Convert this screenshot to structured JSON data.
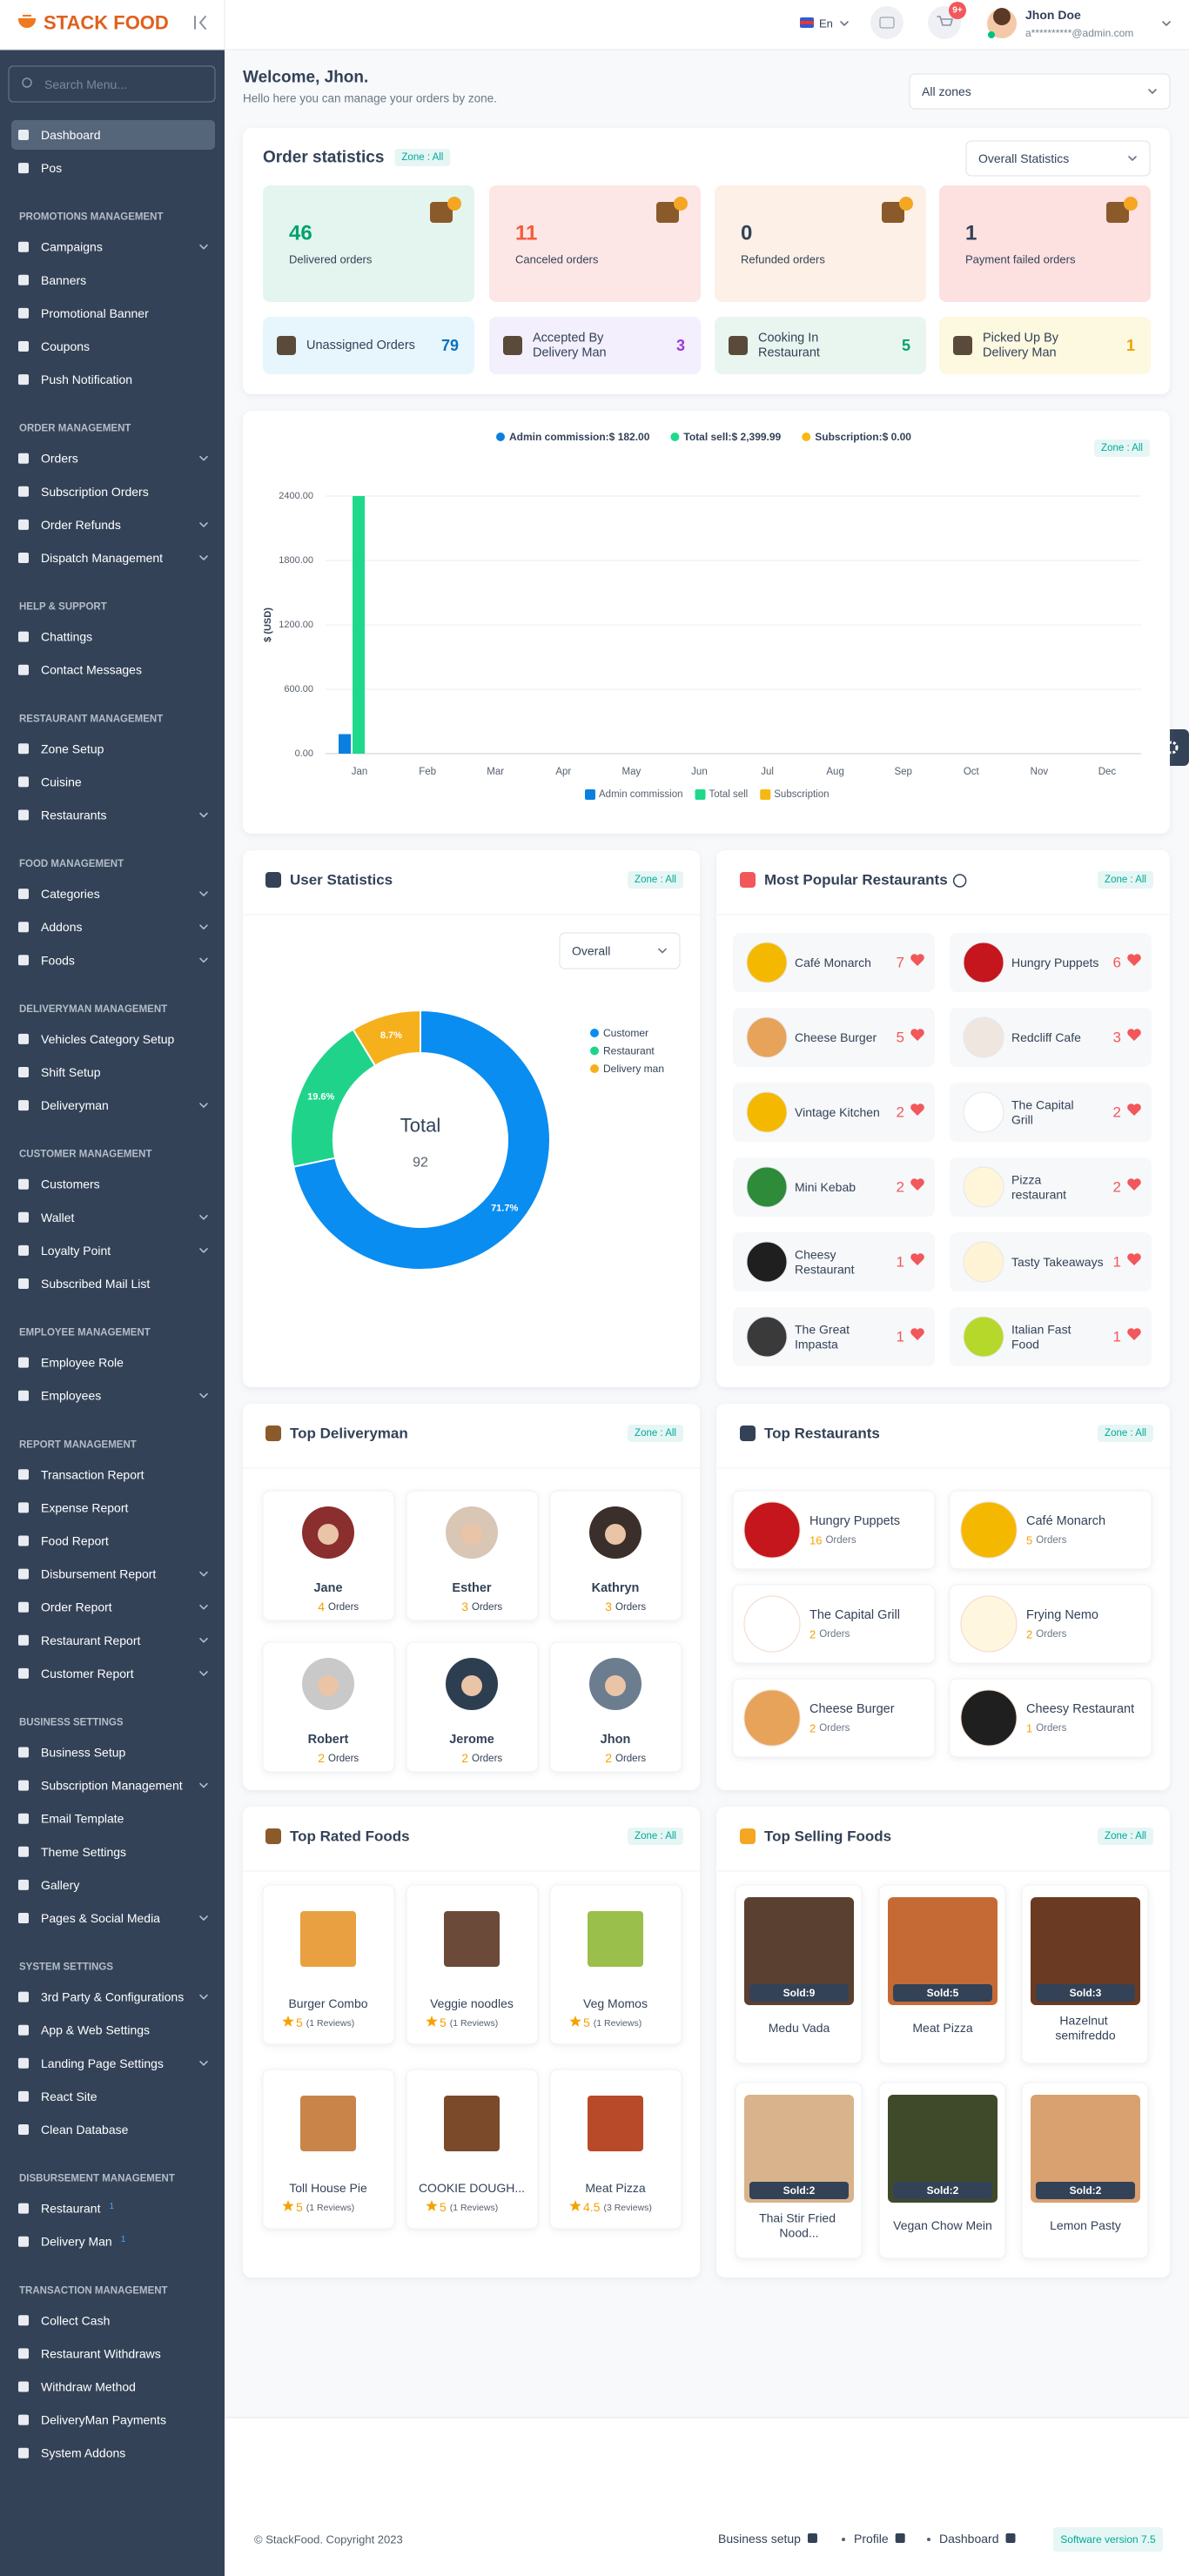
{
  "header": {
    "logo": "STACK FOOD",
    "language": "En",
    "cart_badge": "9+",
    "user_name": "Jhon Doe",
    "user_email": "a**********@admin.com"
  },
  "sidebar": {
    "search_placeholder": "Search Menu...",
    "sections": [
      {
        "items": [
          {
            "label": "Dashboard"
          },
          {
            "label": "Pos"
          }
        ]
      },
      {
        "title": "PROMOTIONS MANAGEMENT",
        "items": [
          {
            "label": "Campaigns"
          },
          {
            "label": "Banners"
          },
          {
            "label": "Promotional Banner"
          },
          {
            "label": "Coupons"
          },
          {
            "label": "Push Notification"
          }
        ]
      },
      {
        "title": "ORDER MANAGEMENT",
        "items": [
          {
            "label": "Orders"
          },
          {
            "label": "Subscription Orders"
          },
          {
            "label": "Order Refunds"
          },
          {
            "label": "Dispatch Management"
          }
        ]
      },
      {
        "title": "HELP & SUPPORT",
        "items": [
          {
            "label": "Chattings"
          },
          {
            "label": "Contact Messages"
          }
        ]
      },
      {
        "title": "RESTAURANT MANAGEMENT",
        "items": [
          {
            "label": "Zone Setup"
          },
          {
            "label": "Cuisine"
          },
          {
            "label": "Restaurants"
          }
        ]
      },
      {
        "title": "FOOD MANAGEMENT",
        "items": [
          {
            "label": "Categories"
          },
          {
            "label": "Addons"
          },
          {
            "label": "Foods"
          }
        ]
      },
      {
        "title": "DELIVERYMAN MANAGEMENT",
        "items": [
          {
            "label": "Vehicles Category Setup"
          },
          {
            "label": "Shift Setup"
          },
          {
            "label": "Deliveryman"
          }
        ]
      },
      {
        "title": "CUSTOMER MANAGEMENT",
        "items": [
          {
            "label": "Customers"
          },
          {
            "label": "Wallet"
          },
          {
            "label": "Loyalty Point"
          },
          {
            "label": "Subscribed Mail List"
          }
        ]
      },
      {
        "title": "EMPLOYEE MANAGEMENT",
        "items": [
          {
            "label": "Employee Role"
          },
          {
            "label": "Employees"
          }
        ]
      },
      {
        "title": "REPORT MANAGEMENT",
        "items": [
          {
            "label": "Transaction Report"
          },
          {
            "label": "Expense Report"
          },
          {
            "label": "Food Report"
          },
          {
            "label": "Disbursement Report"
          },
          {
            "label": "Order Report"
          },
          {
            "label": "Restaurant Report"
          },
          {
            "label": "Customer Report"
          }
        ]
      },
      {
        "title": "BUSINESS SETTINGS",
        "items": [
          {
            "label": "Business Setup"
          },
          {
            "label": "Subscription Management"
          },
          {
            "label": "Email Template"
          },
          {
            "label": "Theme Settings"
          },
          {
            "label": "Gallery"
          },
          {
            "label": "Pages & Social Media"
          }
        ]
      },
      {
        "title": "SYSTEM SETTINGS",
        "items": [
          {
            "label": "3rd Party & Configurations"
          },
          {
            "label": "App & Web Settings"
          },
          {
            "label": "Landing Page Settings"
          },
          {
            "label": "React Site"
          },
          {
            "label": "Clean Database"
          }
        ]
      },
      {
        "title": "DISBURSEMENT MANAGEMENT",
        "items": [
          {
            "label": "Restaurant",
            "badge": 1
          },
          {
            "label": "Delivery Man",
            "badge": 1
          }
        ]
      },
      {
        "title": "TRANSACTION MANAGEMENT",
        "items": [
          {
            "label": "Collect Cash"
          },
          {
            "label": "Restaurant Withdraws"
          },
          {
            "label": "Withdraw Method"
          },
          {
            "label": "DeliveryMan Payments"
          },
          {
            "label": "System Addons"
          }
        ]
      }
    ]
  },
  "welcome": {
    "title": "Welcome, Jhon.",
    "subtitle": "Hello here you can manage your orders by zone.",
    "zone_select": "All zones"
  },
  "order_statistics": {
    "title": "Order statistics",
    "zone": "Zone : All",
    "filter": "Overall Statistics",
    "cards": [
      {
        "value": 46,
        "label": "Delivered orders"
      },
      {
        "value": 11,
        "label": "Canceled orders"
      },
      {
        "value": 0,
        "label": "Refunded orders"
      },
      {
        "value": 1,
        "label": "Payment failed orders"
      }
    ],
    "status": [
      {
        "label": "Unassigned Orders",
        "value": 79
      },
      {
        "label": "Accepted By Delivery Man",
        "value": 3
      },
      {
        "label": "Cooking In Restaurant",
        "value": 5
      },
      {
        "label": "Picked Up By Delivery Man",
        "value": 1
      }
    ]
  },
  "chart_data": [
    {
      "type": "bar",
      "zone": "Zone : All",
      "summary": [
        "Admin commission:$ 182.00",
        "Total sell:$ 2,399.99",
        "Subscription:$ 0.00"
      ],
      "y_label": "$ (USD)",
      "categories": [
        "Jan",
        "Feb",
        "Mar",
        "Apr",
        "May",
        "Jun",
        "Jul",
        "Aug",
        "Sep",
        "Oct",
        "Nov",
        "Dec"
      ],
      "series": [
        {
          "name": "Admin commission",
          "color": "#0b7fe0",
          "values": [
            182,
            0,
            0,
            0,
            0,
            0,
            0,
            0,
            0,
            0,
            0,
            0
          ]
        },
        {
          "name": "Total sell",
          "color": "#1ed98b",
          "values": [
            2399.99,
            0,
            0,
            0,
            0,
            0,
            0,
            0,
            0,
            0,
            0,
            0
          ]
        },
        {
          "name": "Subscription",
          "color": "#f5b912",
          "values": [
            0,
            0,
            0,
            0,
            0,
            0,
            0,
            0,
            0,
            0,
            0,
            0
          ]
        }
      ],
      "ylim": [
        0,
        2400
      ],
      "yticks": [
        {
          "value": 0,
          "label": "0.00"
        },
        {
          "value": 600,
          "label": "600.00"
        },
        {
          "value": 1200,
          "label": "1200.00"
        },
        {
          "value": 1800,
          "label": "1800.00"
        },
        {
          "value": 2400,
          "label": "2400.00"
        }
      ],
      "grid": true
    },
    {
      "type": "pie",
      "title": "User Statistics",
      "zone": "Zone : All",
      "filter": "Overall",
      "categories": [
        "Customer",
        "Restaurant",
        "Delivery man"
      ],
      "values": [
        71.7,
        19.6,
        8.7
      ],
      "value_labels": [
        "71.7%",
        "19.6%",
        "8.7%"
      ],
      "colors": [
        "#0a8df0",
        "#1fd48a",
        "#f6b01c"
      ],
      "donut": true,
      "center_label": "Total",
      "center_value": 92
    }
  ],
  "popular_restaurants": {
    "title": "Most Popular Restaurants",
    "zone": "Zone : All",
    "items": [
      {
        "name": "Café Monarch",
        "count": 7
      },
      {
        "name": "Hungry Puppets",
        "count": 6
      },
      {
        "name": "Cheese Burger",
        "count": 5
      },
      {
        "name": "Redcliff Cafe",
        "count": 3
      },
      {
        "name": "Vintage Kitchen",
        "count": 2
      },
      {
        "name": "The Capital Grill",
        "count": 2
      },
      {
        "name": "Mini Kebab",
        "count": 2
      },
      {
        "name": "Pizza restaurant",
        "count": 2
      },
      {
        "name": "Cheesy Restaurant",
        "count": 1
      },
      {
        "name": "Tasty Takeaways",
        "count": 1
      },
      {
        "name": "The Great Impasta",
        "count": 1
      },
      {
        "name": "Italian Fast Food",
        "count": 1
      }
    ]
  },
  "top_deliveryman": {
    "title": "Top Deliveryman",
    "zone": "Zone : All",
    "items": [
      {
        "name": "Jane",
        "orders": 4,
        "unit": "Orders"
      },
      {
        "name": "Esther",
        "orders": 3,
        "unit": "Orders"
      },
      {
        "name": "Kathryn",
        "orders": 3,
        "unit": "Orders"
      },
      {
        "name": "Robert",
        "orders": 2,
        "unit": "Orders"
      },
      {
        "name": "Jerome",
        "orders": 2,
        "unit": "Orders"
      },
      {
        "name": "Jhon",
        "orders": 2,
        "unit": "Orders"
      }
    ]
  },
  "top_restaurants": {
    "title": "Top Restaurants",
    "zone": "Zone : All",
    "items": [
      {
        "name": "Hungry Puppets",
        "orders": 16,
        "unit": "Orders"
      },
      {
        "name": "Café Monarch",
        "orders": 5,
        "unit": "Orders"
      },
      {
        "name": "The Capital Grill",
        "orders": 2,
        "unit": "Orders"
      },
      {
        "name": "Frying Nemo",
        "orders": 2,
        "unit": "Orders"
      },
      {
        "name": "Cheese Burger",
        "orders": 2,
        "unit": "Orders"
      },
      {
        "name": "Cheesy Restaurant",
        "orders": 1,
        "unit": "Orders"
      }
    ]
  },
  "top_rated_foods": {
    "title": "Top Rated Foods",
    "zone": "Zone : All",
    "items": [
      {
        "name": "Burger Combo",
        "rating": 5,
        "reviews": "(1 Reviews)"
      },
      {
        "name": "Veggie noodles",
        "rating": 5,
        "reviews": "(1 Reviews)"
      },
      {
        "name": "Veg Momos",
        "rating": 5,
        "reviews": "(1 Reviews)"
      },
      {
        "name": "Toll House Pie",
        "rating": 5,
        "reviews": "(1 Reviews)"
      },
      {
        "name": "COOKIE DOUGH...",
        "rating": 5,
        "reviews": "(1 Reviews)"
      },
      {
        "name": "Meat Pizza",
        "rating": 4.5,
        "reviews": "(3 Reviews)"
      }
    ]
  },
  "top_selling_foods": {
    "title": "Top Selling Foods",
    "zone": "Zone : All",
    "items": [
      {
        "name": "Medu Vada",
        "sold": "Sold:9"
      },
      {
        "name": "Meat Pizza",
        "sold": "Sold:5"
      },
      {
        "name": "Hazelnut semifreddo",
        "sold": "Sold:3"
      },
      {
        "name": "Thai Stir Fried Nood...",
        "sold": "Sold:2"
      },
      {
        "name": "Vegan Chow Mein",
        "sold": "Sold:2"
      },
      {
        "name": "Lemon Pasty",
        "sold": "Sold:2"
      }
    ]
  },
  "footer": {
    "copyright": "© StackFood. Copyright 2023",
    "links": [
      "Business setup",
      "Profile",
      "Dashboard"
    ],
    "version": "Software version 7.5"
  }
}
